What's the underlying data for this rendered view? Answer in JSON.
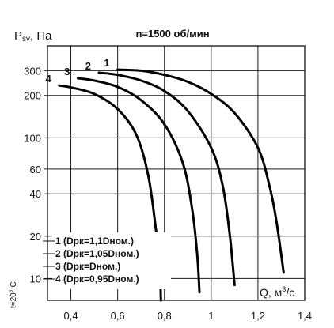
{
  "chart_data": {
    "type": "line",
    "title": "n=1500 об/мин",
    "ylabel": "Psv, Па",
    "ylabel_main": "P",
    "ylabel_sub": "sv",
    "ylabel_unit": ", Па",
    "xlabel": "Q, м³/с",
    "xlabel_main": "Q, м",
    "xlabel_sup": "3",
    "xlabel_tail": "/с",
    "note": "t=20° C",
    "xlim": [
      0.3,
      1.4
    ],
    "ylim": [
      7,
      450
    ],
    "y_scale": "log",
    "x_ticks": [
      0.4,
      0.6,
      0.8,
      1.0,
      1.2,
      1.4
    ],
    "x_tick_labels": [
      "0,4",
      "0,6",
      "0,8",
      "1",
      "1,2",
      "1,4"
    ],
    "y_ticks": [
      10,
      20,
      40,
      60,
      100,
      200,
      300
    ],
    "y_tick_labels": [
      "10",
      "20",
      "40",
      "60",
      "100",
      "200",
      "300"
    ],
    "grid": true,
    "series": [
      {
        "name": "1 (Dрк=1,1Dном.)",
        "label": "1",
        "x": [
          0.6,
          0.7,
          0.8,
          0.9,
          1.0,
          1.1,
          1.2,
          1.25,
          1.28,
          1.31
        ],
        "y": [
          305,
          300,
          280,
          250,
          205,
          150,
          85,
          45,
          25,
          11
        ]
      },
      {
        "name": "2 (Dрк=1,05Dном.)",
        "label": "2",
        "x": [
          0.52,
          0.6,
          0.7,
          0.8,
          0.9,
          1.0,
          1.05,
          1.08,
          1.1
        ],
        "y": [
          290,
          280,
          255,
          215,
          155,
          85,
          45,
          20,
          9
        ]
      },
      {
        "name": "3 (Dрк=Dном.)",
        "label": "3",
        "x": [
          0.43,
          0.5,
          0.6,
          0.7,
          0.8,
          0.88,
          0.92,
          0.94,
          0.95
        ],
        "y": [
          265,
          255,
          230,
          185,
          125,
          65,
          30,
          15,
          8
        ]
      },
      {
        "name": "4 (Dрк=0,95Dном.)",
        "label": "4",
        "x": [
          0.35,
          0.4,
          0.5,
          0.6,
          0.68,
          0.73,
          0.76,
          0.78,
          0.785
        ],
        "y": [
          235,
          228,
          205,
          160,
          105,
          55,
          25,
          12,
          7
        ]
      }
    ]
  }
}
